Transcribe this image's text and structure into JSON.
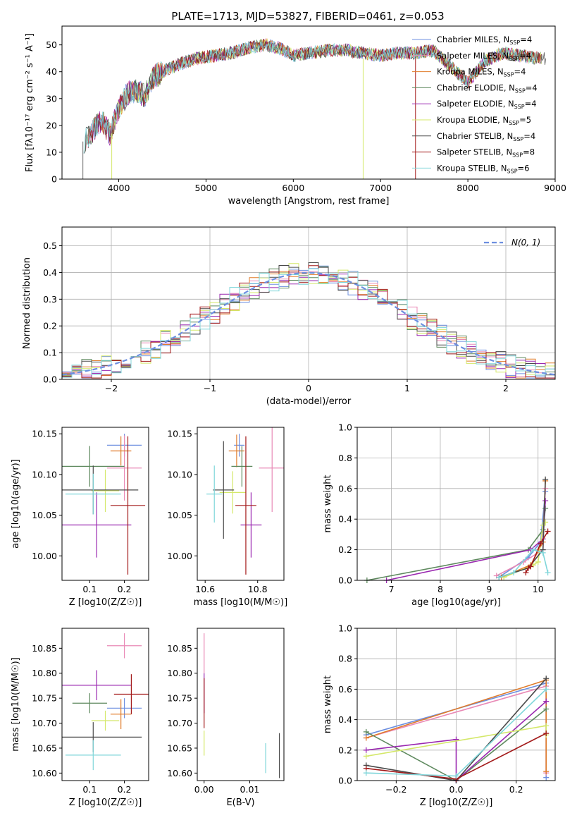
{
  "figure_title": "PLATE=1713, MJD=53827, FIBERID=0461, z=0.053",
  "colors": {
    "Chabrier MILES": "#6d8fe0",
    "Salpeter MILES": "#e98ab6",
    "Kroupa MILES": "#e07b2a",
    "Chabrier ELODIE": "#5f8a5f",
    "Salpeter ELODIE": "#9a28b0",
    "Kroupa ELODIE": "#d4e86a",
    "Chabrier STELIB": "#4a4a4a",
    "Salpeter STELIB": "#a31a1a",
    "Kroupa STELIB": "#7fd6da",
    "normal": "#6d8fe0"
  },
  "chart_data": [
    {
      "id": "spectrum",
      "type": "line",
      "title": "PLATE=1713, MJD=53827, FIBERID=0461, z=0.053",
      "xlabel": "wavelength [Angstrom, rest frame]",
      "ylabel": "Flux [fλ10⁻¹⁷ erg cm⁻² s⁻¹ A⁻¹]",
      "xlim": [
        3350,
        9000
      ],
      "ylim": [
        0,
        57
      ],
      "xticks": [
        4000,
        5000,
        6000,
        7000,
        8000,
        9000
      ],
      "yticks": [
        0,
        10,
        20,
        30,
        40,
        50
      ],
      "legend_position": "right",
      "legend": [
        "Chabrier MILES, N_SSP=4",
        "Salpeter MILES, N_SSP=4",
        "Kroupa MILES, N_SSP=4",
        "Chabrier ELODIE, N_SSP=4",
        "Salpeter ELODIE, N_SSP=4",
        "Kroupa ELODIE, N_SSP=5",
        "Chabrier STELIB, N_SSP=4",
        "Salpeter STELIB, N_SSP=8",
        "Kroupa STELIB, N_SSP=6"
      ],
      "continuum": {
        "x": [
          3600,
          3700,
          3800,
          3900,
          4000,
          4100,
          4200,
          4300,
          4400,
          4500,
          4700,
          4900,
          5100,
          5300,
          5500,
          5700,
          5900,
          6000,
          6200,
          6400,
          6600,
          6800,
          7000,
          7200,
          7400,
          7600,
          7800,
          8000,
          8200,
          8400,
          8600,
          8800
        ],
        "y": [
          14,
          18,
          22,
          17,
          26,
          32,
          33,
          31,
          38,
          40,
          43,
          45,
          46,
          47,
          49,
          50,
          48,
          46,
          47,
          48,
          48,
          47,
          46,
          47,
          47,
          48,
          42,
          36,
          44,
          47,
          46,
          45
        ]
      }
    },
    {
      "id": "residuals",
      "type": "histogram",
      "xlabel": "(data-model)/error",
      "ylabel": "Normed distribution",
      "xlim": [
        -2.5,
        2.5
      ],
      "ylim": [
        0,
        0.57
      ],
      "xticks": [
        -2,
        -1,
        0,
        1,
        2
      ],
      "yticks": [
        0.0,
        0.1,
        0.2,
        0.3,
        0.4,
        0.5
      ],
      "legend": [
        "N(0, 1)"
      ],
      "legend_position": "top-right",
      "grid": true,
      "bin_width": 0.1
    },
    {
      "id": "age_vs_Z",
      "type": "scatter",
      "xlabel": "Z [log10(Z/Z☉)]",
      "ylabel": "age  [log10(age/yr)]",
      "xlim": [
        0.02,
        0.27
      ],
      "ylim": [
        9.97,
        10.158
      ],
      "xticks": [
        0.1,
        0.2
      ],
      "yticks": [
        10.0,
        10.05,
        10.1,
        10.15
      ],
      "points": [
        {
          "series": "Chabrier MILES",
          "x": 0.2,
          "y": 10.136,
          "xerr": 0.05,
          "yerr": 0.014
        },
        {
          "series": "Salpeter MILES",
          "x": 0.2,
          "y": 10.108,
          "xerr": 0.05,
          "yerr": 0.04
        },
        {
          "series": "Kroupa MILES",
          "x": 0.19,
          "y": 10.129,
          "xerr": 0.03,
          "yerr": 0.018
        },
        {
          "series": "Chabrier ELODIE",
          "x": 0.1,
          "y": 10.11,
          "xerr": 0.1,
          "yerr": 0.025
        },
        {
          "series": "Salpeter ELODIE",
          "x": 0.12,
          "y": 10.038,
          "xerr": 0.1,
          "yerr": 0.04
        },
        {
          "series": "Kroupa ELODIE",
          "x": 0.145,
          "y": 10.08,
          "xerr": 0.04,
          "yerr": 0.026
        },
        {
          "series": "Chabrier STELIB",
          "x": 0.11,
          "y": 10.081,
          "xerr": 0.13,
          "yerr": 0.03
        },
        {
          "series": "Salpeter STELIB",
          "x": 0.21,
          "y": 10.062,
          "xerr": 0.05,
          "yerr": 0.085
        },
        {
          "series": "Kroupa STELIB",
          "x": 0.11,
          "y": 10.076,
          "xerr": 0.08,
          "yerr": 0.025
        }
      ]
    },
    {
      "id": "age_vs_mass",
      "type": "scatter",
      "xlabel": "mass [log10(M/M☉)]",
      "ylabel": "",
      "xlim": [
        10.57,
        10.9
      ],
      "ylim": [
        9.97,
        10.158
      ],
      "xticks": [
        10.6,
        10.8
      ],
      "yticks": [
        10.0,
        10.05,
        10.1,
        10.15
      ],
      "points": [
        {
          "series": "Chabrier MILES",
          "x": 10.73,
          "y": 10.136,
          "xerr": 0.02,
          "yerr": 0.014
        },
        {
          "series": "Salpeter MILES",
          "x": 10.855,
          "y": 10.108,
          "xerr": 0.05,
          "yerr": 0.054
        },
        {
          "series": "Kroupa MILES",
          "x": 10.72,
          "y": 10.129,
          "xerr": 0.03,
          "yerr": 0.02
        },
        {
          "series": "Chabrier ELODIE",
          "x": 10.74,
          "y": 10.11,
          "xerr": 0.04,
          "yerr": 0.025
        },
        {
          "series": "Salpeter ELODIE",
          "x": 10.775,
          "y": 10.038,
          "xerr": 0.04,
          "yerr": 0.04
        },
        {
          "series": "Kroupa ELODIE",
          "x": 10.705,
          "y": 10.078,
          "xerr": 0.05,
          "yerr": 0.026
        },
        {
          "series": "Chabrier STELIB",
          "x": 10.67,
          "y": 10.081,
          "xerr": 0.04,
          "yerr": 0.06
        },
        {
          "series": "Salpeter STELIB",
          "x": 10.755,
          "y": 10.062,
          "xerr": 0.04,
          "yerr": 0.085
        },
        {
          "series": "Kroupa STELIB",
          "x": 10.635,
          "y": 10.076,
          "xerr": 0.03,
          "yerr": 0.035
        }
      ]
    },
    {
      "id": "weight_vs_age",
      "type": "line",
      "xlabel": "age  [log10(age/yr)]",
      "ylabel": "mass weight",
      "xlim": [
        6.3,
        10.35
      ],
      "ylim": [
        0,
        1.0
      ],
      "xticks": [
        7,
        8,
        9,
        10
      ],
      "yticks": [
        0.0,
        0.2,
        0.4,
        0.6,
        0.8,
        1.0
      ],
      "grid": true,
      "series": [
        {
          "name": "Chabrier MILES",
          "x": [
            9.2,
            9.8,
            10.05,
            10.15
          ],
          "y": [
            0.02,
            0.15,
            0.25,
            0.58
          ]
        },
        {
          "name": "Salpeter MILES",
          "x": [
            9.15,
            9.7,
            10.1,
            10.15
          ],
          "y": [
            0.03,
            0.12,
            0.2,
            0.6
          ]
        },
        {
          "name": "Kroupa MILES",
          "x": [
            9.25,
            9.85,
            10.1,
            10.15
          ],
          "y": [
            0.02,
            0.1,
            0.25,
            0.65
          ]
        },
        {
          "name": "Chabrier ELODIE",
          "x": [
            6.5,
            9.8,
            10.1,
            10.15
          ],
          "y": [
            0.0,
            0.2,
            0.33,
            0.47
          ]
        },
        {
          "name": "Salpeter ELODIE",
          "x": [
            6.9,
            9.85,
            10.1,
            10.15
          ],
          "y": [
            0.0,
            0.2,
            0.27,
            0.52
          ]
        },
        {
          "name": "Kroupa ELODIE",
          "x": [
            9.3,
            9.9,
            10.0,
            10.1,
            10.15
          ],
          "y": [
            0.02,
            0.1,
            0.12,
            0.36,
            0.38
          ]
        },
        {
          "name": "Chabrier STELIB",
          "x": [
            9.2,
            9.8,
            10.1,
            10.15
          ],
          "y": [
            0.02,
            0.08,
            0.2,
            0.66
          ]
        },
        {
          "name": "Salpeter STELIB",
          "x": [
            9.75,
            9.8,
            9.85,
            10.05,
            10.2
          ],
          "y": [
            0.05,
            0.08,
            0.09,
            0.24,
            0.32
          ]
        },
        {
          "name": "Kroupa STELIB",
          "x": [
            9.2,
            9.5,
            9.9,
            10.1,
            10.2
          ],
          "y": [
            0.02,
            0.05,
            0.2,
            0.18,
            0.05
          ]
        }
      ]
    },
    {
      "id": "mass_vs_Z",
      "type": "scatter",
      "xlabel": "Z [log10(Z/Z☉)]",
      "ylabel": "mass [log10(M/M☉)]",
      "xlim": [
        0.02,
        0.27
      ],
      "ylim": [
        10.585,
        10.89
      ],
      "xticks": [
        0.1,
        0.2
      ],
      "yticks": [
        10.6,
        10.65,
        10.7,
        10.75,
        10.8,
        10.85
      ],
      "points": [
        {
          "series": "Chabrier MILES",
          "x": 0.2,
          "y": 10.73,
          "xerr": 0.05,
          "yerr": 0.02
        },
        {
          "series": "Salpeter MILES",
          "x": 0.2,
          "y": 10.855,
          "xerr": 0.05,
          "yerr": 0.025
        },
        {
          "series": "Kroupa MILES",
          "x": 0.19,
          "y": 10.718,
          "xerr": 0.03,
          "yerr": 0.03
        },
        {
          "series": "Chabrier ELODIE",
          "x": 0.1,
          "y": 10.74,
          "xerr": 0.05,
          "yerr": 0.02
        },
        {
          "series": "Salpeter ELODIE",
          "x": 0.12,
          "y": 10.776,
          "xerr": 0.1,
          "yerr": 0.03
        },
        {
          "series": "Kroupa ELODIE",
          "x": 0.145,
          "y": 10.705,
          "xerr": 0.04,
          "yerr": 0.02
        },
        {
          "series": "Chabrier STELIB",
          "x": 0.11,
          "y": 10.672,
          "xerr": 0.14,
          "yerr": 0.03
        },
        {
          "series": "Salpeter STELIB",
          "x": 0.22,
          "y": 10.758,
          "xerr": 0.05,
          "yerr": 0.04
        },
        {
          "series": "Kroupa STELIB",
          "x": 0.11,
          "y": 10.636,
          "xerr": 0.08,
          "yerr": 0.03
        }
      ]
    },
    {
      "id": "mass_vs_ebv",
      "type": "scatter",
      "xlabel": "E(B-V)",
      "ylabel": "",
      "xlim": [
        -0.0015,
        0.0175
      ],
      "ylim": [
        10.585,
        10.89
      ],
      "xticks": [
        0.0,
        0.01
      ],
      "yticks": [
        10.6,
        10.65,
        10.7,
        10.75,
        10.8,
        10.85
      ],
      "points": [
        {
          "series": "Salpeter MILES",
          "x": 0.0,
          "y": 10.84,
          "xerr": 0.0,
          "yerr": 0.04
        },
        {
          "series": "Salpeter ELODIE",
          "x": 0.0,
          "y": 10.76,
          "xerr": 0.0,
          "yerr": 0.04
        },
        {
          "series": "Salpeter STELIB",
          "x": 0.0,
          "y": 10.74,
          "xerr": 0.0,
          "yerr": 0.05
        },
        {
          "series": "Kroupa ELODIE",
          "x": 0.0,
          "y": 10.66,
          "xerr": 0.0,
          "yerr": 0.025
        },
        {
          "series": "Kroupa STELIB",
          "x": 0.0135,
          "y": 10.63,
          "xerr": 0.0,
          "yerr": 0.03
        },
        {
          "series": "Chabrier STELIB",
          "x": 0.0165,
          "y": 10.635,
          "xerr": 0.0,
          "yerr": 0.045
        }
      ]
    },
    {
      "id": "weight_vs_Z",
      "type": "line",
      "xlabel": "Z [log10(Z/Z☉)]",
      "ylabel": "mass weight",
      "xlim": [
        -0.33,
        0.33
      ],
      "ylim": [
        0,
        1.0
      ],
      "xticks": [
        -0.2,
        0.0,
        0.2
      ],
      "yticks": [
        0.0,
        0.2,
        0.4,
        0.6,
        0.8,
        1.0
      ],
      "grid": true,
      "series": [
        {
          "name": "Chabrier MILES",
          "x": [
            -0.3,
            0.3,
            0.3
          ],
          "y": [
            0.3,
            0.64,
            0.02
          ]
        },
        {
          "name": "Salpeter MILES",
          "x": [
            -0.3,
            0.3,
            0.3
          ],
          "y": [
            0.28,
            0.62,
            0.05
          ]
        },
        {
          "name": "Kroupa MILES",
          "x": [
            -0.3,
            0.3,
            0.3
          ],
          "y": [
            0.28,
            0.66,
            0.06
          ]
        },
        {
          "name": "Chabrier ELODIE",
          "x": [
            -0.3,
            0.0,
            0.3
          ],
          "y": [
            0.32,
            0.0,
            0.47
          ]
        },
        {
          "name": "Salpeter ELODIE",
          "x": [
            -0.3,
            0.0,
            0.0,
            0.0,
            0.3
          ],
          "y": [
            0.2,
            0.27,
            0.0,
            0.0,
            0.52
          ]
        },
        {
          "name": "Kroupa ELODIE",
          "x": [
            -0.3,
            0.3,
            0.3
          ],
          "y": [
            0.16,
            0.36,
            0.3
          ]
        },
        {
          "name": "Chabrier STELIB",
          "x": [
            -0.3,
            0.0,
            0.3
          ],
          "y": [
            0.1,
            0.0,
            0.67
          ]
        },
        {
          "name": "Salpeter STELIB",
          "x": [
            -0.3,
            0.0,
            0.3
          ],
          "y": [
            0.08,
            0.01,
            0.31
          ]
        },
        {
          "name": "Kroupa STELIB",
          "x": [
            -0.3,
            0.0,
            0.3
          ],
          "y": [
            0.05,
            0.03,
            0.6
          ]
        }
      ]
    }
  ]
}
